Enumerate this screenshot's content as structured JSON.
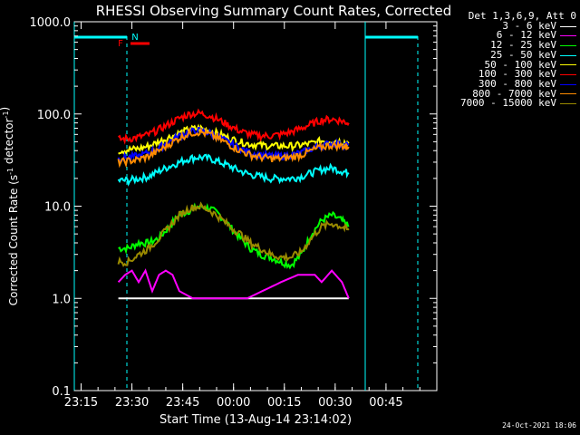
{
  "chart_data": {
    "type": "line",
    "title": "RHESSI Observing Summary Count Rates, Corrected",
    "xlabel": "Start Time (13-Aug-14 23:14:02)",
    "ylabel": "Corrected Count Rate (s",
    "ylabel_sup1": "-1",
    "ylabel_mid": " detector",
    "ylabel_sup2": "-1",
    "ylabel_end": ")",
    "y_scale": "log",
    "ylim": [
      0.1,
      1000
    ],
    "xlim_minutes": [
      -1,
      52
    ],
    "x_ticks": [
      {
        "minutes": 1,
        "label": "23:15"
      },
      {
        "minutes": 16,
        "label": "23:30"
      },
      {
        "minutes": 31,
        "label": "23:45"
      },
      {
        "minutes": 46,
        "label": "00:00"
      },
      {
        "minutes": 61,
        "label": "00:15"
      },
      {
        "minutes": 76,
        "label": "00:30"
      },
      {
        "minutes": 91,
        "label": "00:45"
      }
    ],
    "y_ticks": [
      {
        "value": 0.1,
        "label": "0.1"
      },
      {
        "value": 1,
        "label": "1.0"
      },
      {
        "value": 10,
        "label": "10.0"
      },
      {
        "value": 100,
        "label": "100.0"
      },
      {
        "value": 1000,
        "label": "1000.0"
      }
    ],
    "night_marker": "N",
    "flare_marker": "F",
    "legend_title": "Det 1,3,6,9, Att 0",
    "series": [
      {
        "name": "3 - 6 keV",
        "color": "#ffffff",
        "x": [
          12,
          15,
          20,
          25,
          30,
          35,
          40,
          50,
          60,
          70,
          77,
          80
        ],
        "y": [
          1,
          1,
          1,
          1,
          1,
          1,
          1,
          1,
          1,
          1,
          1,
          1
        ]
      },
      {
        "name": "6 - 12 keV",
        "color": "#ff00ff",
        "x": [
          12,
          14,
          16,
          18,
          20,
          22,
          24,
          26,
          28,
          30,
          34,
          40,
          50,
          60,
          65,
          70,
          72,
          75,
          78,
          80
        ],
        "y": [
          1.5,
          1.8,
          2,
          1.5,
          2,
          1.2,
          1.8,
          2,
          1.8,
          1.2,
          1,
          1,
          1,
          1.5,
          1.8,
          1.8,
          1.5,
          2,
          1.5,
          1
        ]
      },
      {
        "name": "12 - 25 keV",
        "color": "#00ff00",
        "x": [
          12,
          15,
          18,
          21,
          24,
          27,
          30,
          33,
          36,
          39,
          42,
          45,
          48,
          51,
          54,
          57,
          60,
          63,
          66,
          69,
          72,
          75,
          78,
          80
        ],
        "y": [
          3.5,
          3.5,
          4,
          4,
          4.5,
          6,
          8,
          9,
          10,
          9.5,
          8,
          6,
          4.5,
          3.5,
          3,
          2.8,
          2.5,
          2.3,
          3,
          5,
          7,
          8,
          7,
          6
        ]
      },
      {
        "name": "25 - 50 keV",
        "color": "#00ffff",
        "x": [
          12,
          15,
          18,
          21,
          24,
          27,
          30,
          33,
          36,
          39,
          42,
          45,
          48,
          51,
          54,
          57,
          60,
          63,
          66,
          69,
          72,
          75,
          78,
          80
        ],
        "y": [
          19,
          19,
          20,
          21,
          24,
          27,
          30,
          33,
          34,
          33,
          30,
          27,
          24,
          22,
          21,
          20,
          20,
          20,
          21,
          23,
          25,
          26,
          24,
          23
        ]
      },
      {
        "name": "50 - 100 keV",
        "color": "#ffff00",
        "x": [
          12,
          15,
          18,
          21,
          24,
          27,
          30,
          33,
          36,
          39,
          42,
          45,
          48,
          51,
          54,
          57,
          60,
          63,
          66,
          69,
          72,
          75,
          78,
          80
        ],
        "y": [
          40,
          41,
          42,
          45,
          50,
          56,
          62,
          68,
          70,
          66,
          60,
          54,
          50,
          47,
          46,
          45,
          45,
          45,
          46,
          48,
          51,
          52,
          50,
          48
        ]
      },
      {
        "name": "100 - 300 keV",
        "color": "#ff0000",
        "x": [
          12,
          15,
          18,
          21,
          24,
          27,
          30,
          33,
          36,
          39,
          42,
          45,
          48,
          51,
          54,
          57,
          60,
          63,
          66,
          69,
          72,
          75,
          78,
          80
        ],
        "y": [
          53,
          54,
          56,
          60,
          68,
          78,
          90,
          100,
          102,
          96,
          85,
          74,
          65,
          60,
          58,
          58,
          60,
          64,
          70,
          78,
          86,
          88,
          84,
          80
        ]
      },
      {
        "name": "300 - 800 keV",
        "color": "#0000ff",
        "x": [
          12,
          15,
          18,
          21,
          24,
          27,
          30,
          33,
          36,
          39,
          42,
          45,
          48,
          51,
          54,
          57,
          60,
          63,
          66,
          69,
          72,
          75,
          78,
          80
        ],
        "y": [
          33,
          34,
          35,
          38,
          43,
          50,
          58,
          64,
          66,
          62,
          55,
          48,
          42,
          38,
          36,
          35,
          35,
          36,
          38,
          42,
          46,
          48,
          47,
          46
        ]
      },
      {
        "name": "800 - 7000 keV",
        "color": "#ff8c00",
        "x": [
          12,
          15,
          18,
          21,
          24,
          27,
          30,
          33,
          36,
          39,
          42,
          45,
          48,
          51,
          54,
          57,
          60,
          63,
          66,
          69,
          72,
          75,
          78,
          80
        ],
        "y": [
          30,
          31,
          32,
          35,
          40,
          47,
          55,
          62,
          64,
          60,
          53,
          46,
          40,
          36,
          34,
          33,
          33,
          34,
          36,
          40,
          44,
          46,
          45,
          44
        ]
      },
      {
        "name": "7000 - 15000 keV",
        "color": "#9a8a00",
        "x": [
          12,
          15,
          18,
          21,
          24,
          27,
          30,
          33,
          36,
          39,
          42,
          45,
          48,
          51,
          54,
          57,
          60,
          63,
          66,
          69,
          72,
          75,
          78,
          80
        ],
        "y": [
          2.5,
          2.5,
          3,
          3.5,
          4.5,
          6,
          8,
          9.5,
          10,
          9,
          7.5,
          6,
          5,
          4,
          3.5,
          3,
          2.8,
          2.8,
          3.2,
          4.5,
          6,
          6.5,
          6,
          5.5
        ]
      }
    ]
  },
  "footer": {
    "timestamp": "24-Oct-2021 18:06"
  }
}
